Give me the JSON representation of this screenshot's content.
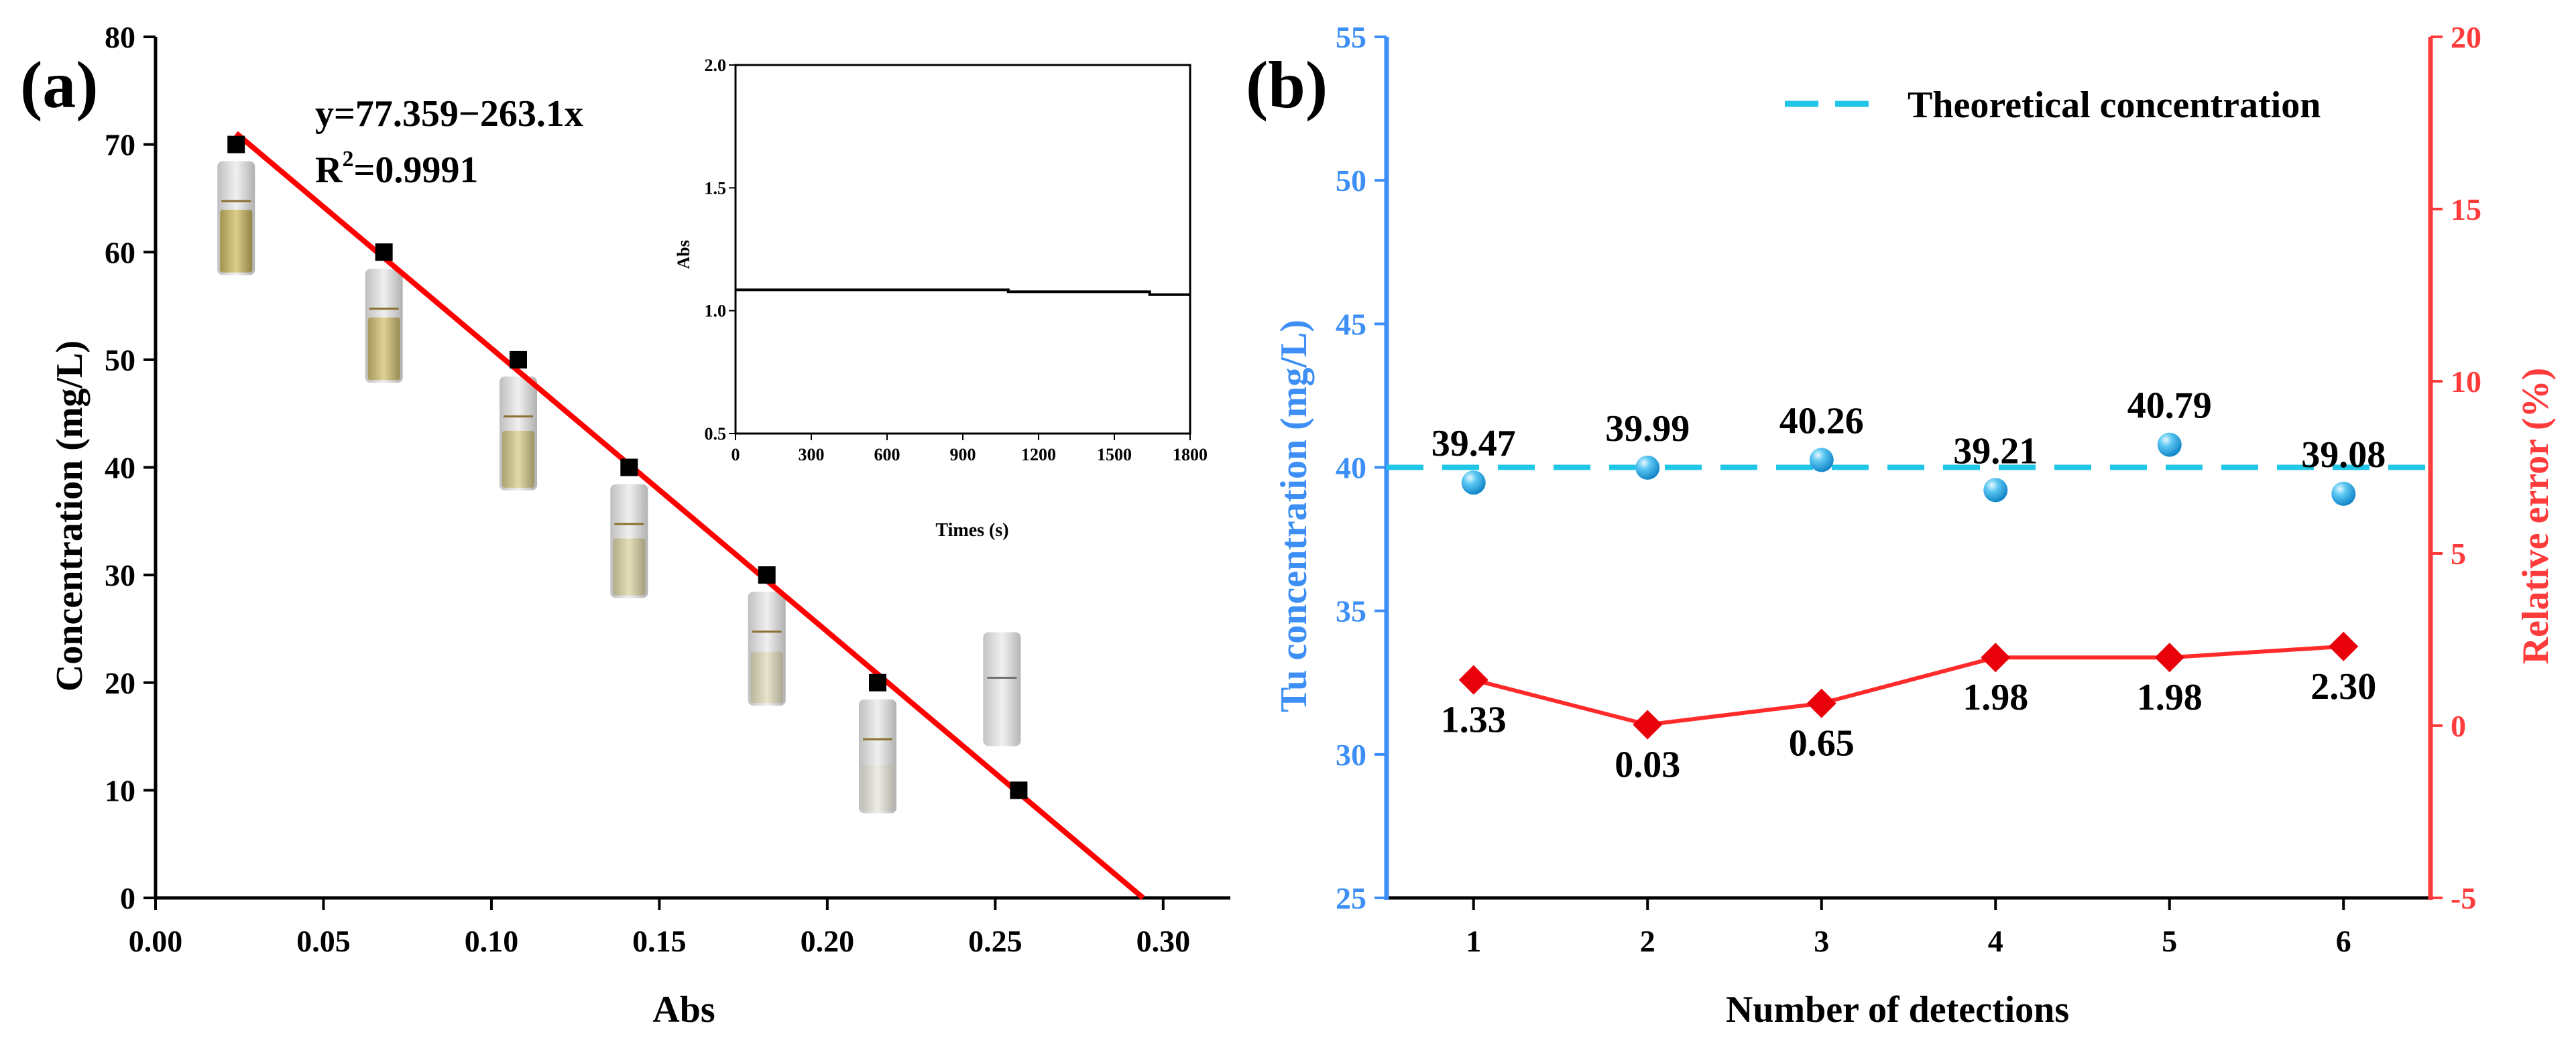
{
  "chart_data": [
    {
      "panel_label": "(a)",
      "type": "scatter",
      "xlabel": "Abs",
      "ylabel": "Concentration (mg/L)",
      "xlim": [
        0,
        0.32
      ],
      "ylim": [
        0,
        80
      ],
      "xticks": [
        "0.00",
        "0.05",
        "0.10",
        "0.15",
        "0.20",
        "0.25",
        "0.30"
      ],
      "xtick_values": [
        0,
        0.05,
        0.1,
        0.15,
        0.2,
        0.25,
        0.3
      ],
      "yticks": [
        "0",
        "10",
        "20",
        "30",
        "40",
        "50",
        "60",
        "70",
        "80"
      ],
      "ytick_values": [
        0,
        10,
        20,
        30,
        40,
        50,
        60,
        70,
        80
      ],
      "points": {
        "x": [
          0.024,
          0.068,
          0.108,
          0.141,
          0.182,
          0.215,
          0.257
        ],
        "y": [
          70,
          60,
          50,
          40,
          30,
          20,
          10
        ]
      },
      "fit": {
        "intercept": 77.359,
        "slope": -263.1,
        "x_range": [
          0.024,
          0.294
        ]
      },
      "equation": "y=77.359−263.1x",
      "r2_prefix": "R",
      "r2_sup": "2",
      "r2_value": "=0.9991",
      "colors": {
        "points": "#000000",
        "fit": "#ff0000"
      },
      "inset": {
        "type": "line",
        "xlabel": "Times (s)",
        "ylabel": "Abs",
        "xlim": [
          0,
          1800
        ],
        "ylim": [
          0.5,
          2.0
        ],
        "xticks": [
          "0",
          "300",
          "600",
          "900",
          "1200",
          "1500",
          "1800"
        ],
        "xtick_values": [
          0,
          300,
          600,
          900,
          1200,
          1500,
          1800
        ],
        "yticks": [
          "0.5",
          "1.0",
          "1.5",
          "2.0"
        ],
        "ytick_values": [
          0.5,
          1.0,
          1.5,
          2.0
        ],
        "x": [
          0,
          1080,
          1080,
          1640,
          1640,
          1800
        ],
        "y": [
          1.085,
          1.085,
          1.077,
          1.077,
          1.065,
          1.065
        ]
      }
    },
    {
      "panel_label": "(b)",
      "type": "scatter",
      "xlabel": "Number of detections",
      "ylabel_left": "Tu concentration (mg/L)",
      "ylabel_right": "Relative error (%)",
      "categories": [
        "1",
        "2",
        "3",
        "4",
        "5",
        "6"
      ],
      "x_values": [
        1,
        2,
        3,
        4,
        5,
        6
      ],
      "xlim": [
        0.5,
        6.5
      ],
      "ylim_left": [
        25,
        55
      ],
      "yticks_left": [
        "25",
        "30",
        "35",
        "40",
        "45",
        "50",
        "55"
      ],
      "ytick_values_left": [
        25,
        30,
        35,
        40,
        45,
        50,
        55
      ],
      "ylim_right": [
        -5,
        20
      ],
      "yticks_right": [
        "-5",
        "0",
        "5",
        "10",
        "15",
        "20"
      ],
      "ytick_values_right": [
        -5,
        0,
        5,
        10,
        15,
        20
      ],
      "theoretical_value": 40,
      "legend": {
        "label": "Theoretical concentration",
        "position": "top-right"
      },
      "series": [
        {
          "name": "Tu concentration",
          "axis": "left",
          "values": [
            39.47,
            39.99,
            40.26,
            39.21,
            40.79,
            39.08
          ],
          "labels": [
            "39.47",
            "39.99",
            "40.26",
            "39.21",
            "40.79",
            "39.08"
          ],
          "color": "#1ea7e6"
        },
        {
          "name": "Relative error",
          "axis": "right",
          "values": [
            1.33,
            0.03,
            0.65,
            1.98,
            1.98,
            2.3
          ],
          "labels": [
            "1.33",
            "0.03",
            "0.65",
            "1.98",
            "1.98",
            "2.30"
          ],
          "color": "#ff2b2b"
        }
      ],
      "colors": {
        "left_axis": "#3d8ff5",
        "right_axis": "#ff3b3b",
        "theoretical": "#1fc6e8"
      }
    }
  ]
}
